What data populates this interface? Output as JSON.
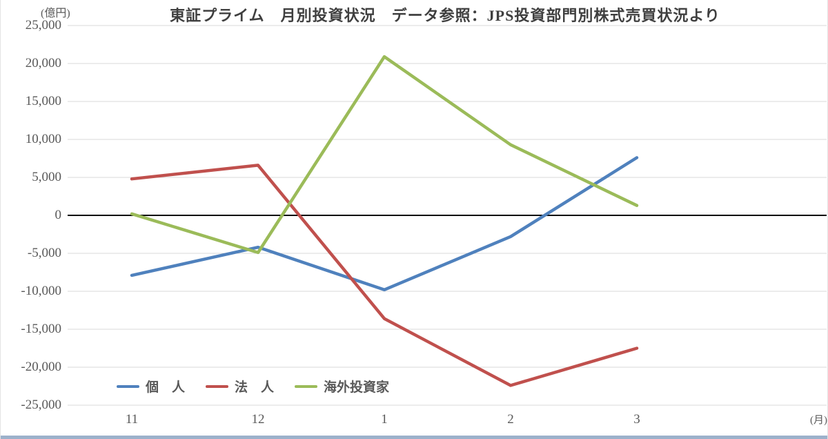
{
  "title": "東証プライム　月別投資状況　データ参照：JPS投資部門別株式売買状況より",
  "y_axis_unit": "(億円)",
  "x_axis_unit": "(月)",
  "colors": {
    "grid": "#d9d9d9",
    "zero_axis": "#000000",
    "axis_label_text": "#595959",
    "title_text": "#3f3f3f",
    "series_blue": "#4F81BD",
    "series_red": "#C0504D",
    "series_green": "#9BBB59",
    "bottom_strip": "#9cb1cb"
  },
  "chart_data": {
    "type": "line",
    "title": "東証プライム　月別投資状況　データ参照：JPS投資部門別株式売買状況より",
    "xlabel": "(月)",
    "ylabel": "(億円)",
    "categories": [
      "11",
      "12",
      "1",
      "2",
      "3"
    ],
    "series": [
      {
        "name": "個　人",
        "color": "#4F81BD",
        "values": [
          -7900,
          -4200,
          -9800,
          -2800,
          7600
        ]
      },
      {
        "name": "法　人",
        "color": "#C0504D",
        "values": [
          4800,
          6600,
          -13600,
          -22400,
          -17500
        ]
      },
      {
        "name": "海外投資家",
        "color": "#9BBB59",
        "values": [
          200,
          -4900,
          20900,
          9300,
          1300
        ]
      }
    ],
    "ylim": [
      -25000,
      25000
    ],
    "ytick_step": 5000,
    "ytick_labels": [
      "25,000",
      "20,000",
      "15,000",
      "10,000",
      "5,000",
      "0",
      "-5,000",
      "-10,000",
      "-15,000",
      "-20,000",
      "-25,000"
    ],
    "grid": true,
    "legend_position": "bottom-left-inside"
  }
}
